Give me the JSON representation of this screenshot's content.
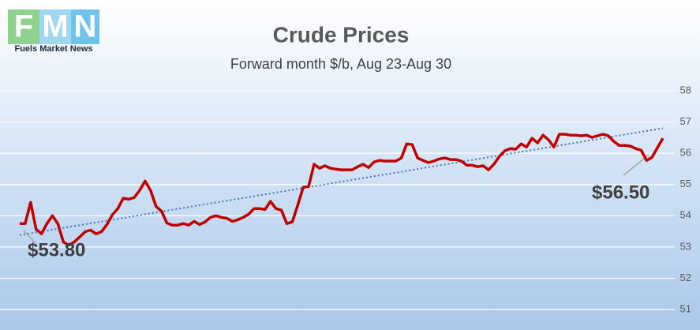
{
  "logo": {
    "letters": [
      "F",
      "M",
      "N"
    ],
    "tagline": "Fuels Market News"
  },
  "chart_data": {
    "type": "line",
    "title": "Crude Prices",
    "subtitle": "Forward month $/b, Aug 23-Aug 30",
    "series": [
      {
        "name": "Crude",
        "color": "#c00000",
        "values": [
          53.75,
          53.75,
          54.43,
          53.57,
          53.42,
          53.75,
          54.0,
          53.75,
          53.16,
          53.06,
          53.16,
          53.32,
          53.49,
          53.54,
          53.42,
          53.49,
          53.72,
          54.03,
          54.23,
          54.56,
          54.53,
          54.58,
          54.81,
          55.11,
          54.81,
          54.3,
          54.15,
          53.77,
          53.7,
          53.7,
          53.75,
          53.7,
          53.82,
          53.72,
          53.8,
          53.95,
          54.0,
          53.95,
          53.92,
          53.82,
          53.87,
          53.95,
          54.05,
          54.23,
          54.23,
          54.2,
          54.46,
          54.23,
          54.18,
          53.75,
          53.8,
          54.33,
          54.91,
          54.94,
          55.65,
          55.52,
          55.6,
          55.52,
          55.49,
          55.47,
          55.47,
          55.47,
          55.57,
          55.65,
          55.54,
          55.72,
          55.77,
          55.75,
          55.75,
          55.75,
          55.85,
          56.3,
          56.28,
          55.85,
          55.77,
          55.7,
          55.75,
          55.82,
          55.85,
          55.8,
          55.8,
          55.75,
          55.62,
          55.62,
          55.57,
          55.6,
          55.47,
          55.65,
          55.9,
          56.08,
          56.15,
          56.13,
          56.3,
          56.2,
          56.48,
          56.33,
          56.58,
          56.43,
          56.2,
          56.61,
          56.61,
          56.58,
          56.58,
          56.56,
          56.58,
          56.51,
          56.56,
          56.61,
          56.56,
          56.38,
          56.25,
          56.25,
          56.23,
          56.15,
          56.1,
          55.77,
          55.87,
          56.18,
          56.48
        ]
      }
    ],
    "trendline": {
      "start": 53.38,
      "end": 56.8,
      "color": "#4472c4"
    },
    "annotations": [
      {
        "text": "$53.80"
      },
      {
        "text": "$56.50"
      }
    ],
    "ylim": [
      51,
      58
    ],
    "yticks": [
      51,
      52,
      53,
      54,
      55,
      56,
      57,
      58
    ],
    "grid": true
  }
}
